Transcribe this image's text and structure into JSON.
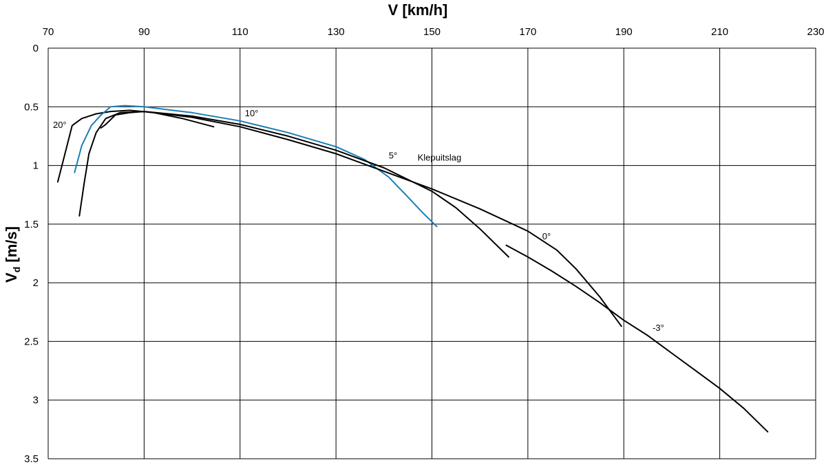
{
  "chart_data": {
    "type": "line",
    "title": "",
    "xlabel": "V [km/h]",
    "ylabel_main": "V",
    "ylabel_sub": "d",
    "ylabel_unit": " [m/s]",
    "xlim": [
      70,
      230
    ],
    "ylim": [
      0,
      3.5
    ],
    "y_inverted": true,
    "x_axis_position": "top",
    "grid": true,
    "x_ticks": [
      70,
      90,
      110,
      130,
      150,
      170,
      190,
      210,
      230
    ],
    "x_tick_labels": [
      "70",
      "90",
      "110",
      "130",
      "150",
      "170",
      "190",
      "210",
      "230"
    ],
    "y_ticks": [
      0,
      0.5,
      1,
      1.5,
      2,
      2.5,
      3,
      3.5
    ],
    "y_tick_labels": [
      "0",
      "0.5",
      "1",
      "1.5",
      "2",
      "2.5",
      "3",
      "3.5"
    ],
    "colors": {
      "black": "#000000",
      "blue": "#1a7db5"
    },
    "series": [
      {
        "color": "#000000",
        "x": [
          72.0,
          73.5,
          75.0,
          77.0,
          80.0,
          83.0,
          87.0,
          92.0,
          98.0,
          104.5
        ],
        "y": [
          1.14,
          0.9,
          0.66,
          0.6,
          0.56,
          0.54,
          0.53,
          0.55,
          0.6,
          0.67
        ]
      },
      {
        "color": "#1a7db5",
        "x": [
          75.5,
          77.0,
          79.0,
          81.0,
          83.0,
          86.0,
          90.0,
          100.0,
          110.0,
          120.0,
          130.0,
          136.0,
          141.0,
          145.0,
          148.0,
          151.0
        ],
        "y": [
          1.06,
          0.83,
          0.66,
          0.57,
          0.5,
          0.49,
          0.5,
          0.55,
          0.62,
          0.72,
          0.84,
          0.95,
          1.1,
          1.27,
          1.4,
          1.52
        ]
      },
      {
        "color": "#000000",
        "x": [
          76.5,
          77.5,
          78.5,
          80.0,
          82.0,
          85.0,
          90.0,
          100.0,
          110.0,
          120.0,
          130.0,
          140.0,
          150.0,
          155.0,
          160.0,
          166.0
        ],
        "y": [
          1.43,
          1.15,
          0.9,
          0.72,
          0.6,
          0.55,
          0.54,
          0.58,
          0.65,
          0.75,
          0.87,
          1.02,
          1.22,
          1.36,
          1.54,
          1.78
        ]
      },
      {
        "color": "#000000",
        "x": [
          81.0,
          82.0,
          84.0,
          87.0,
          90.0,
          100.0,
          110.0,
          120.0,
          130.0,
          140.0,
          150.0,
          160.0,
          170.0,
          176.0,
          180.0,
          185.0,
          189.5
        ],
        "y": [
          0.68,
          0.65,
          0.57,
          0.55,
          0.54,
          0.59,
          0.67,
          0.78,
          0.9,
          1.05,
          1.2,
          1.37,
          1.56,
          1.72,
          1.88,
          2.12,
          2.37
        ]
      },
      {
        "color": "#000000",
        "x": [
          165.5,
          170.0,
          175.0,
          180.0,
          185.0,
          190.0,
          195.0,
          200.0,
          205.0,
          210.0,
          215.0,
          220.0
        ],
        "y": [
          1.68,
          1.78,
          1.9,
          2.03,
          2.17,
          2.32,
          2.45,
          2.6,
          2.75,
          2.9,
          3.07,
          3.27
        ]
      }
    ],
    "annotations": [
      {
        "text": "20°",
        "x": 71.0,
        "y": 0.68
      },
      {
        "text": "10°",
        "x": 111.0,
        "y": 0.58
      },
      {
        "text": "5°",
        "x": 141.0,
        "y": 0.94
      },
      {
        "text": "Klepuitslag",
        "x": 147.0,
        "y": 0.96
      },
      {
        "text": "0°",
        "x": 173.0,
        "y": 1.63
      },
      {
        "text": "-3°",
        "x": 196.0,
        "y": 2.41
      }
    ]
  }
}
